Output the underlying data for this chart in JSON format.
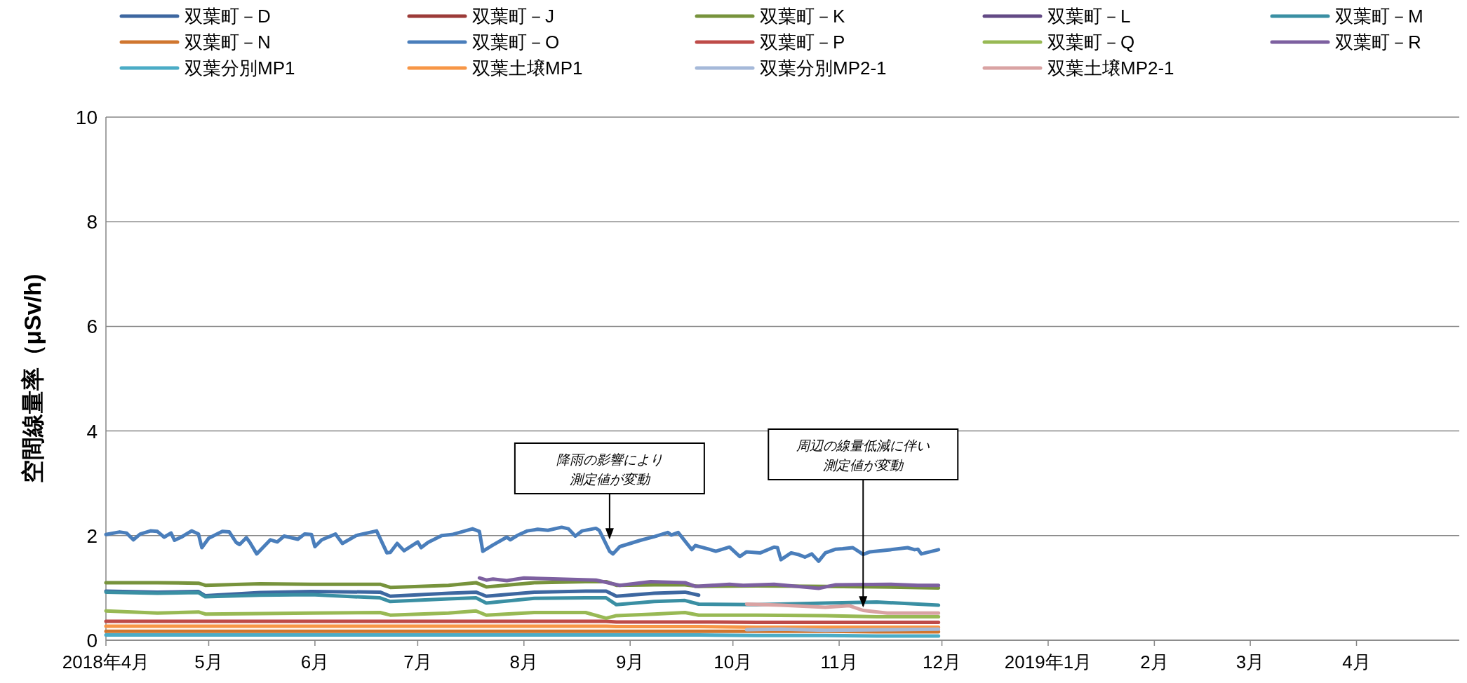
{
  "chart_data": {
    "type": "line",
    "ylabel": "空間線量率（μSv/h)",
    "ylim": [
      0,
      10
    ],
    "yticks": [
      0,
      2,
      4,
      6,
      8,
      10
    ],
    "xlim": [
      "2018-04-01",
      "2019-05-01"
    ],
    "xticks": [
      {
        "value": "2018-04-01",
        "label": "2018年4月"
      },
      {
        "value": "2018-05-01",
        "label": "5月"
      },
      {
        "value": "2018-06-01",
        "label": "6月"
      },
      {
        "value": "2018-07-01",
        "label": "7月"
      },
      {
        "value": "2018-08-01",
        "label": "8月"
      },
      {
        "value": "2018-09-01",
        "label": "9月"
      },
      {
        "value": "2018-10-01",
        "label": "10月"
      },
      {
        "value": "2018-11-01",
        "label": "11月"
      },
      {
        "value": "2018-12-01",
        "label": "12月"
      },
      {
        "value": "2019-01-01",
        "label": "2019年1月"
      },
      {
        "value": "2019-02-01",
        "label": "2月"
      },
      {
        "value": "2019-03-01",
        "label": "3月"
      },
      {
        "value": "2019-04-01",
        "label": "4月"
      }
    ],
    "grid": "y",
    "legend": "top",
    "x": [
      "2018-04-01",
      "2018-04-16",
      "2018-04-28",
      "2018-04-30",
      "2018-05-16",
      "2018-05-31",
      "2018-06-20",
      "2018-06-23",
      "2018-07-10",
      "2018-07-18",
      "2018-07-21",
      "2018-08-04",
      "2018-08-19",
      "2018-08-25",
      "2018-08-28",
      "2018-09-08",
      "2018-09-17",
      "2018-09-21",
      "2018-10-08",
      "2018-10-28",
      "2018-11-12",
      "2018-11-30"
    ],
    "series": [
      {
        "name": "双葉町－D",
        "color": "#3d67a0",
        "values": [
          0.94,
          0.92,
          0.93,
          0.85,
          0.91,
          0.93,
          0.92,
          0.84,
          0.9,
          0.92,
          0.84,
          0.92,
          0.94,
          0.94,
          0.84,
          0.9,
          0.92,
          0.86,
          null,
          null,
          null,
          null
        ]
      },
      {
        "name": "双葉町－J",
        "color": "#9c3b38",
        "values": [
          null,
          null,
          null,
          null,
          null,
          null,
          null,
          null,
          null,
          null,
          null,
          null,
          null,
          null,
          null,
          null,
          null,
          null,
          null,
          null,
          null,
          null
        ]
      },
      {
        "name": "双葉町－K",
        "color": "#77933c",
        "values": [
          1.1,
          1.1,
          1.09,
          1.05,
          1.08,
          1.07,
          1.07,
          1.01,
          1.05,
          1.1,
          1.02,
          1.1,
          1.12,
          1.12,
          1.05,
          1.06,
          1.06,
          1.03,
          1.04,
          1.03,
          1.02,
          1.0
        ]
      },
      {
        "name": "双葉町－L",
        "color": "#634a85",
        "values": [
          null,
          null,
          null,
          null,
          null,
          null,
          null,
          null,
          null,
          null,
          null,
          null,
          null,
          null,
          null,
          null,
          null,
          null,
          null,
          null,
          null,
          null
        ]
      },
      {
        "name": "双葉町－M",
        "color": "#3a8fa3",
        "values": [
          0.92,
          0.9,
          0.91,
          0.83,
          0.86,
          0.87,
          0.81,
          0.74,
          0.79,
          0.81,
          0.71,
          0.8,
          0.81,
          0.81,
          0.68,
          0.74,
          0.76,
          0.69,
          0.68,
          0.71,
          0.73,
          0.67
        ]
      },
      {
        "name": "双葉町－N",
        "color": "#d0762f",
        "values": [
          0.17,
          0.17,
          0.17,
          0.17,
          0.17,
          0.17,
          0.17,
          0.17,
          0.17,
          0.17,
          0.17,
          0.17,
          0.17,
          0.17,
          0.17,
          0.17,
          0.17,
          0.17,
          0.17,
          0.17,
          0.16,
          0.16
        ]
      },
      {
        "name": "双葉町－O",
        "color": "#4a7ebb",
        "x": [
          "2018-04-01",
          "2018-04-05",
          "2018-04-07",
          "2018-04-09",
          "2018-04-11",
          "2018-04-14",
          "2018-04-16",
          "2018-04-18",
          "2018-04-20",
          "2018-04-21",
          "2018-04-23",
          "2018-04-26",
          "2018-04-28",
          "2018-04-29",
          "2018-05-01",
          "2018-05-05",
          "2018-05-07",
          "2018-05-09",
          "2018-05-10",
          "2018-05-12",
          "2018-05-13",
          "2018-05-15",
          "2018-05-19",
          "2018-05-21",
          "2018-05-23",
          "2018-05-27",
          "2018-05-29",
          "2018-05-31",
          "2018-06-01",
          "2018-06-03",
          "2018-06-07",
          "2018-06-09",
          "2018-06-13",
          "2018-06-19",
          "2018-06-22",
          "2018-06-23",
          "2018-06-25",
          "2018-06-27",
          "2018-07-01",
          "2018-07-02",
          "2018-07-04",
          "2018-07-08",
          "2018-07-11",
          "2018-07-17",
          "2018-07-19",
          "2018-07-20",
          "2018-07-23",
          "2018-07-27",
          "2018-07-28",
          "2018-07-30",
          "2018-08-02",
          "2018-08-05",
          "2018-08-08",
          "2018-08-12",
          "2018-08-14",
          "2018-08-16",
          "2018-08-18",
          "2018-08-22",
          "2018-08-23",
          "2018-08-26",
          "2018-08-27",
          "2018-08-29",
          "2018-08-31",
          "2018-09-04",
          "2018-09-08",
          "2018-09-12",
          "2018-09-13",
          "2018-09-15",
          "2018-09-19",
          "2018-09-20",
          "2018-09-24",
          "2018-09-26",
          "2018-09-30",
          "2018-10-03",
          "2018-10-05",
          "2018-10-09",
          "2018-10-13",
          "2018-10-14",
          "2018-10-15",
          "2018-10-18",
          "2018-10-20",
          "2018-10-22",
          "2018-10-24",
          "2018-10-26",
          "2018-10-28",
          "2018-10-31",
          "2018-11-02",
          "2018-11-05",
          "2018-11-08",
          "2018-11-10",
          "2018-11-16",
          "2018-11-21",
          "2018-11-23",
          "2018-11-24",
          "2018-11-25",
          "2018-11-30"
        ],
        "values": [
          2.02,
          2.07,
          2.05,
          1.92,
          2.03,
          2.09,
          2.08,
          1.97,
          2.05,
          1.91,
          1.97,
          2.09,
          2.03,
          1.77,
          1.95,
          2.08,
          2.07,
          1.87,
          1.83,
          1.96,
          1.87,
          1.65,
          1.92,
          1.88,
          1.99,
          1.93,
          2.03,
          2.02,
          1.79,
          1.92,
          2.03,
          1.85,
          2.0,
          2.09,
          1.67,
          1.68,
          1.85,
          1.71,
          1.88,
          1.77,
          1.87,
          2.0,
          2.02,
          2.13,
          2.08,
          1.7,
          1.82,
          1.97,
          1.92,
          2.0,
          2.09,
          2.12,
          2.1,
          2.16,
          2.13,
          1.99,
          2.09,
          2.14,
          2.1,
          1.7,
          1.65,
          1.79,
          1.83,
          1.91,
          1.98,
          2.06,
          2.01,
          2.06,
          1.73,
          1.81,
          1.74,
          1.7,
          1.78,
          1.6,
          1.69,
          1.67,
          1.78,
          1.77,
          1.54,
          1.67,
          1.64,
          1.59,
          1.65,
          1.51,
          1.67,
          1.74,
          1.75,
          1.77,
          1.64,
          1.69,
          1.73,
          1.77,
          1.73,
          1.74,
          1.65,
          1.73
        ]
      },
      {
        "name": "双葉町－P",
        "color": "#be4b48",
        "values": [
          0.36,
          0.36,
          0.36,
          0.36,
          0.36,
          0.36,
          0.36,
          0.36,
          0.36,
          0.36,
          0.36,
          0.36,
          0.36,
          0.36,
          0.35,
          0.35,
          0.35,
          0.35,
          0.34,
          0.34,
          0.34,
          0.34
        ]
      },
      {
        "name": "双葉町－Q",
        "color": "#98b954",
        "values": [
          0.56,
          0.52,
          0.54,
          0.5,
          0.51,
          0.52,
          0.53,
          0.48,
          0.52,
          0.56,
          0.48,
          0.53,
          0.53,
          0.42,
          0.47,
          0.5,
          0.53,
          0.48,
          0.48,
          0.47,
          0.45,
          0.45
        ]
      },
      {
        "name": "双葉町－R",
        "color": "#7d60a0",
        "x": [
          "2018-07-19",
          "2018-07-21",
          "2018-07-23",
          "2018-07-27",
          "2018-08-01",
          "2018-08-22",
          "2018-08-29",
          "2018-09-07",
          "2018-09-17",
          "2018-09-20",
          "2018-09-30",
          "2018-10-04",
          "2018-10-13",
          "2018-10-26",
          "2018-10-31",
          "2018-11-16",
          "2018-11-24",
          "2018-11-30"
        ],
        "values": [
          1.19,
          1.15,
          1.17,
          1.14,
          1.19,
          1.15,
          1.05,
          1.12,
          1.1,
          1.03,
          1.07,
          1.05,
          1.07,
          0.99,
          1.06,
          1.07,
          1.05,
          1.05
        ]
      },
      {
        "name": "双葉分別MP1",
        "color": "#4bacc6",
        "values": [
          0.1,
          0.1,
          0.1,
          0.1,
          0.1,
          0.1,
          0.1,
          0.1,
          0.1,
          0.1,
          0.1,
          0.1,
          0.1,
          0.1,
          0.1,
          0.1,
          0.1,
          0.1,
          0.09,
          0.09,
          0.08,
          0.08
        ]
      },
      {
        "name": "双葉土壌MP1",
        "color": "#f79646",
        "values": [
          0.27,
          0.27,
          0.27,
          0.27,
          0.27,
          0.27,
          0.27,
          0.27,
          0.27,
          0.27,
          0.27,
          0.27,
          0.27,
          0.27,
          0.26,
          0.26,
          0.26,
          0.26,
          0.25,
          0.25,
          0.25,
          0.25
        ]
      },
      {
        "name": "双葉分別MP2-1",
        "color": "#a5b9d9",
        "x": [
          "2018-10-05",
          "2018-10-15",
          "2018-10-28",
          "2018-11-15",
          "2018-11-30"
        ],
        "values": [
          0.2,
          0.21,
          0.19,
          0.2,
          0.21
        ]
      },
      {
        "name": "双葉土壌MP2-1",
        "color": "#d9a3a3",
        "x": [
          "2018-10-05",
          "2018-10-15",
          "2018-10-28",
          "2018-11-04",
          "2018-11-08",
          "2018-11-15",
          "2018-11-30"
        ],
        "values": [
          0.69,
          0.67,
          0.63,
          0.66,
          0.57,
          0.52,
          0.52
        ]
      }
    ],
    "annotations": [
      {
        "text": "降雨の影響により測定値が変動",
        "x": "2018-08-26",
        "y": 1.9
      },
      {
        "text": "周辺の線量低減に伴い測定値が変動",
        "x": "2018-11-08",
        "y": 0.6
      }
    ]
  }
}
